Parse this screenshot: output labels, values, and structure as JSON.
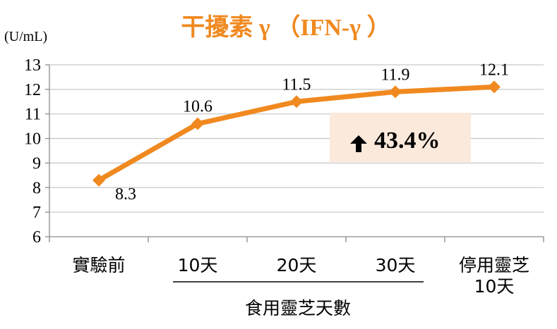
{
  "chart_data": {
    "type": "line",
    "title": "干擾素 γ （IFN-γ ）",
    "ylabel": "(U/mL)",
    "xlabel": "食用靈芝天數",
    "categories": [
      "實驗前",
      "10天",
      "20天",
      "30天",
      "停用靈芝\n10天"
    ],
    "values": [
      8.3,
      10.6,
      11.5,
      11.9,
      12.1
    ],
    "data_labels": [
      "8.3",
      "10.6",
      "11.5",
      "11.9",
      "12.1"
    ],
    "ylim": [
      6,
      13
    ],
    "yticks": [
      "6",
      "7",
      "8",
      "9",
      "10",
      "11",
      "12",
      "13"
    ],
    "grid": true,
    "annotation": {
      "arrow": "up-arrow-icon",
      "text": "43.4%",
      "color": "#000000",
      "background": "#fbe9dc"
    },
    "colors": {
      "series": "#f0891f",
      "title": "#f0891f",
      "grid": "#c9c9c9",
      "axis": "#8c8c8c",
      "bracket": "#000000"
    }
  }
}
